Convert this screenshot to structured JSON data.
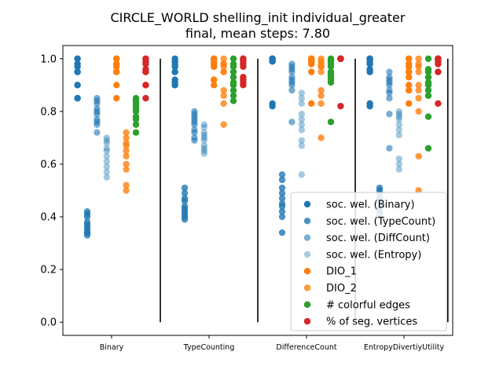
{
  "chart_data": {
    "type": "scatter",
    "title_line1": "CIRCLE_WORLD shelling_init individual_greater",
    "title_line2": "final, mean steps: 7.80",
    "xlabel": "",
    "ylabel": "",
    "ylim": [
      -0.05,
      1.05
    ],
    "yticks": [
      "0.0",
      "0.2",
      "0.4",
      "0.6",
      "0.8",
      "1.0"
    ],
    "categories": [
      "Binary",
      "TypeCounting",
      "DifferenceCount",
      "EntropyDivertiyUtility"
    ],
    "grid": false,
    "legend_position": "lower-right",
    "separators_at": [
      1.5,
      2.5,
      3.5
    ],
    "series": [
      {
        "name": "soc. wel. (Binary)",
        "color": "#1f77b4",
        "opacity": 1.0,
        "offset": -0.35,
        "values": [
          [
            1.0,
            1.0,
            0.98,
            0.97,
            0.95,
            0.95,
            0.9,
            0.9,
            0.85,
            0.85
          ],
          [
            1.0,
            0.99,
            0.98,
            0.97,
            0.95,
            0.95,
            0.92,
            0.91,
            0.9,
            0.9
          ],
          [
            1.0,
            1.0,
            1.0,
            1.0,
            1.0,
            1.0,
            0.99,
            0.99,
            0.83,
            0.82
          ],
          [
            1.0,
            1.0,
            0.99,
            0.98,
            0.96,
            0.95,
            0.95,
            0.83,
            0.82,
            1.0
          ]
        ]
      },
      {
        "name": "soc. wel. (TypeCount)",
        "color": "#1f77b4",
        "opacity": 0.8,
        "offset": -0.25,
        "values": [
          [
            0.42,
            0.41,
            0.4,
            0.38,
            0.37,
            0.36,
            0.35,
            0.34,
            0.34,
            0.33
          ],
          [
            0.51,
            0.49,
            0.47,
            0.46,
            0.44,
            0.43,
            0.42,
            0.41,
            0.4,
            0.39
          ],
          [
            0.56,
            0.54,
            0.51,
            0.49,
            0.47,
            0.45,
            0.44,
            0.42,
            0.4,
            0.34
          ],
          [
            0.51,
            0.5,
            0.49,
            0.47,
            0.46,
            0.45,
            0.43,
            0.42,
            0.41,
            0.4
          ]
        ]
      },
      {
        "name": "soc. wel. (DiffCount)",
        "color": "#1f77b4",
        "opacity": 0.6,
        "offset": -0.15,
        "values": [
          [
            0.85,
            0.84,
            0.83,
            0.81,
            0.8,
            0.79,
            0.77,
            0.76,
            0.75,
            0.72
          ],
          [
            0.8,
            0.79,
            0.78,
            0.77,
            0.76,
            0.75,
            0.73,
            0.72,
            0.7,
            0.69
          ],
          [
            0.98,
            0.97,
            0.96,
            0.95,
            0.93,
            0.92,
            0.91,
            0.9,
            0.88,
            0.76
          ],
          [
            0.95,
            0.93,
            0.92,
            0.91,
            0.9,
            0.88,
            0.87,
            0.85,
            0.79,
            0.66
          ]
        ]
      },
      {
        "name": "soc. wel. (Entropy)",
        "color": "#1f77b4",
        "opacity": 0.4,
        "offset": -0.05,
        "values": [
          [
            0.7,
            0.69,
            0.68,
            0.66,
            0.65,
            0.63,
            0.61,
            0.59,
            0.57,
            0.55
          ],
          [
            0.75,
            0.74,
            0.72,
            0.71,
            0.7,
            0.69,
            0.67,
            0.66,
            0.65,
            0.64
          ],
          [
            0.87,
            0.85,
            0.83,
            0.79,
            0.77,
            0.75,
            0.73,
            0.69,
            0.67,
            0.56
          ],
          [
            0.8,
            0.79,
            0.78,
            0.77,
            0.75,
            0.73,
            0.71,
            0.62,
            0.6,
            0.58
          ]
        ]
      },
      {
        "name": "DIO_1",
        "color": "#ff7f0e",
        "opacity": 1.0,
        "offset": 0.05,
        "values": [
          [
            1.0,
            1.0,
            0.98,
            0.97,
            0.95,
            0.9,
            0.85,
            1.0,
            0.98,
            0.95
          ],
          [
            1.0,
            0.99,
            0.98,
            0.97,
            0.92,
            0.9,
            1.0,
            0.98,
            0.97,
            0.92
          ],
          [
            1.0,
            1.0,
            1.0,
            0.99,
            0.98,
            0.95,
            0.83,
            1.0,
            0.99,
            0.98
          ],
          [
            1.0,
            0.97,
            0.95,
            0.93,
            0.83,
            1.0,
            0.98,
            0.95,
            0.9,
            0.88
          ]
        ]
      },
      {
        "name": "DIO_2",
        "color": "#ff7f0e",
        "opacity": 0.8,
        "offset": 0.15,
        "values": [
          [
            0.72,
            0.7,
            0.68,
            0.67,
            0.65,
            0.63,
            0.6,
            0.58,
            0.52,
            0.5
          ],
          [
            1.0,
            0.98,
            0.97,
            0.95,
            0.88,
            0.86,
            0.83,
            0.75,
            0.98,
            0.95
          ],
          [
            1.0,
            0.99,
            0.98,
            0.97,
            0.95,
            0.88,
            0.86,
            0.83,
            0.7,
            0.97
          ],
          [
            1.0,
            0.98,
            0.97,
            0.95,
            0.88,
            0.85,
            0.8,
            0.63,
            0.5,
            0.9
          ]
        ]
      },
      {
        "name": "# colorful edges",
        "color": "#2ca02c",
        "opacity": 1.0,
        "offset": 0.25,
        "values": [
          [
            0.85,
            0.84,
            0.83,
            0.82,
            0.81,
            0.8,
            0.78,
            0.77,
            0.75,
            0.72
          ],
          [
            1.0,
            0.98,
            0.97,
            0.95,
            0.93,
            0.91,
            0.9,
            0.88,
            0.86,
            0.84
          ],
          [
            1.0,
            0.99,
            0.98,
            0.97,
            0.95,
            0.94,
            0.93,
            0.92,
            0.91,
            0.76
          ],
          [
            1.0,
            0.96,
            0.95,
            0.93,
            0.91,
            0.9,
            0.88,
            0.86,
            0.78,
            0.66
          ]
        ]
      },
      {
        "name": "% of seg. vertices",
        "color": "#d62728",
        "opacity": 1.0,
        "offset": 0.35,
        "values": [
          [
            1.0,
            1.0,
            0.99,
            0.98,
            0.96,
            0.95,
            0.95,
            0.9,
            0.9,
            0.85
          ],
          [
            1.0,
            1.0,
            0.99,
            0.98,
            0.97,
            0.93,
            0.92,
            0.91,
            0.9,
            1.0
          ],
          [
            1.0,
            1.0,
            1.0,
            1.0,
            1.0,
            1.0,
            1.0,
            1.0,
            1.0,
            0.82
          ],
          [
            1.0,
            1.0,
            1.0,
            1.0,
            0.99,
            0.98,
            0.95,
            0.95,
            0.83,
            1.0
          ]
        ]
      }
    ]
  }
}
